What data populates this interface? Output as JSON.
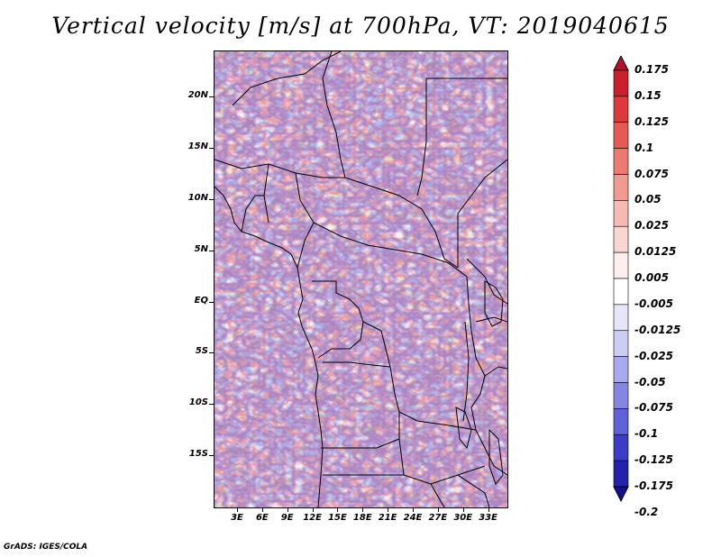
{
  "title": "Vertical velocity [m/s] at 700hPa, VT: 2019040615",
  "credit": "GrADS: IGES/COLA",
  "axes": {
    "lat_labels": [
      "20N",
      "15N",
      "10N",
      "5N",
      "EQ",
      "5S",
      "10S",
      "15S"
    ],
    "lat_values": [
      20,
      15,
      10,
      5,
      0,
      -5,
      -10,
      -15
    ],
    "lon_labels": [
      "3E",
      "6E",
      "9E",
      "12E",
      "15E",
      "18E",
      "21E",
      "24E",
      "27E",
      "30E",
      "33E"
    ],
    "lon_values": [
      3,
      6,
      9,
      12,
      15,
      18,
      21,
      24,
      27,
      30,
      33
    ]
  },
  "colorbar": {
    "labels": [
      "0.175",
      "0.15",
      "0.125",
      "0.1",
      "0.075",
      "0.05",
      "0.025",
      "0.0125",
      "0.005",
      "-0.005",
      "-0.0125",
      "-0.025",
      "-0.05",
      "-0.075",
      "-0.1",
      "-0.125",
      "-0.175",
      "-0.2"
    ],
    "colors": [
      "#b8102a",
      "#cc1f2e",
      "#dc3a3a",
      "#e45a55",
      "#ea7a72",
      "#f09a92",
      "#f6b9b3",
      "#fad6d2",
      "#fdefed",
      "#ffffff",
      "#e6e6fa",
      "#ccccf5",
      "#a9a9ef",
      "#8585e6",
      "#6060d8",
      "#3c3cc6",
      "#2222ad",
      "#140f8c"
    ]
  },
  "colors": {
    "upward": "#cc1f2e",
    "downward": "#2222ad",
    "border": "#000000"
  }
}
